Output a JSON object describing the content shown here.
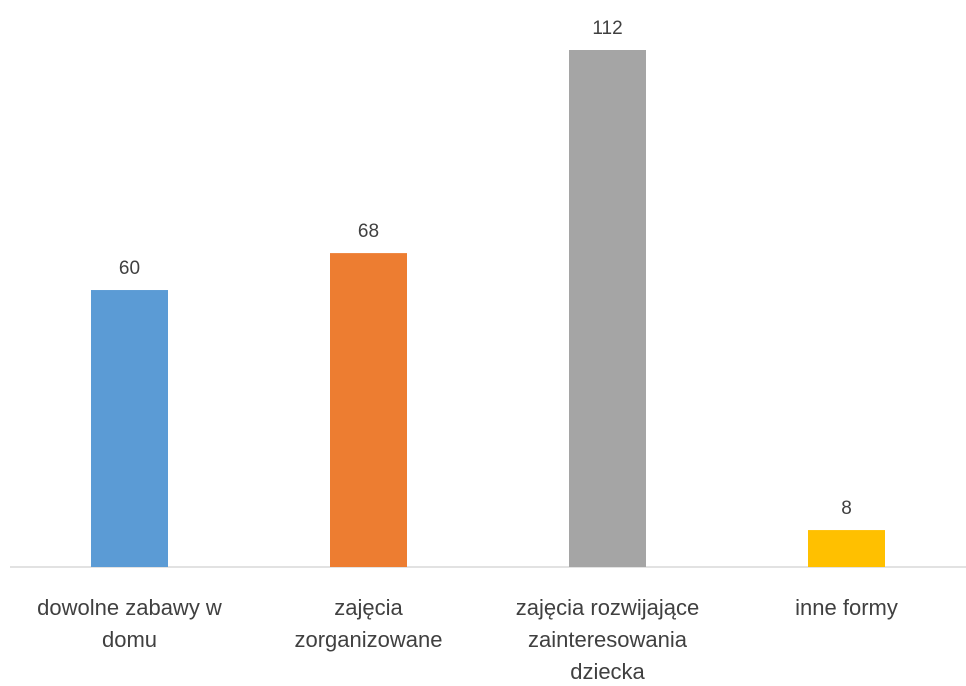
{
  "chart_data": {
    "type": "bar",
    "categories": [
      "dowolne zabawy w domu",
      "zajęcia zorganizowane",
      "zajęcia rozwijające zainteresowania dziecka",
      "inne formy"
    ],
    "values": [
      60,
      68,
      112,
      8
    ],
    "colors": [
      "#5b9bd5",
      "#ed7d31",
      "#a5a5a5",
      "#ffc000"
    ]
  }
}
